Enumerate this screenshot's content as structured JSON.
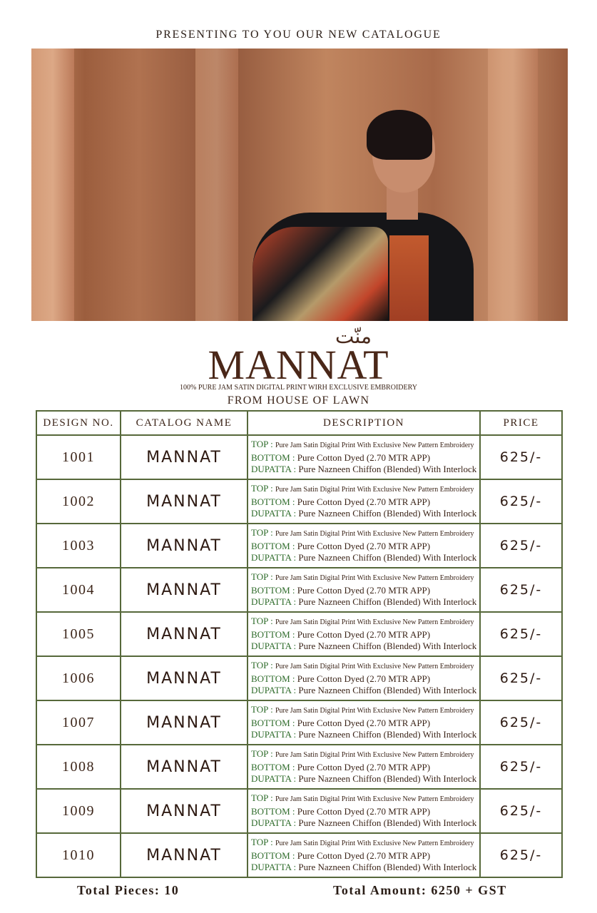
{
  "header": {
    "title": "PRESENTING TO YOU OUR NEW CATALOGUE"
  },
  "brand": {
    "urdu": "منّت",
    "name": "MANNAT",
    "tagline": "100% PURE JAM SATIN DIGITAL PRINT WIRH EXCLUSIVE EMBROIDERY",
    "house": "FROM HOUSE OF LAWN"
  },
  "table": {
    "headers": [
      "DESIGN NO.",
      "CATALOG NAME",
      "DESCRIPTION",
      "PRICE"
    ],
    "rows": [
      {
        "design": "1001",
        "name": "MANNAT",
        "price": "625/-"
      },
      {
        "design": "1002",
        "name": "MANNAT",
        "price": "625/-"
      },
      {
        "design": "1003",
        "name": "MANNAT",
        "price": "625/-"
      },
      {
        "design": "1004",
        "name": "MANNAT",
        "price": "625/-"
      },
      {
        "design": "1005",
        "name": "MANNAT",
        "price": "625/-"
      },
      {
        "design": "1006",
        "name": "MANNAT",
        "price": "625/-"
      },
      {
        "design": "1007",
        "name": "MANNAT",
        "price": "625/-"
      },
      {
        "design": "1008",
        "name": "MANNAT",
        "price": "625/-"
      },
      {
        "design": "1009",
        "name": "MANNAT",
        "price": "625/-"
      },
      {
        "design": "1010",
        "name": "MANNAT",
        "price": "625/-"
      }
    ],
    "description": {
      "top_label": "TOP :",
      "top": "Pure Jam Satin Digital Print With Exclusive New Pattern Embroidery",
      "bottom_label": "BOTTOM :",
      "bottom": "Pure Cotton Dyed (2.70 MTR APP)",
      "dupatta_label": "DUPATTA :",
      "dupatta": "Pure Nazneen Chiffon (Blended) With Interlock"
    }
  },
  "footer": {
    "total_pieces": "Total Pieces: 10",
    "total_amount": "Total Amount: 6250 + GST"
  },
  "colors": {
    "border": "#56683a",
    "label": "#2e6b2a",
    "brand": "#4a2718"
  }
}
